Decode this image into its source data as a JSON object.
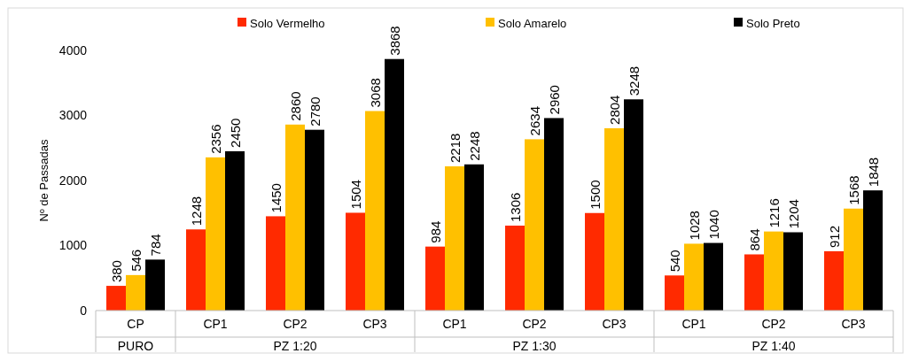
{
  "chart_data": {
    "type": "bar",
    "ylabel": "Nº de Passadas",
    "categories": [
      "CP",
      "CP1",
      "CP2",
      "CP3",
      "CP1",
      "CP2",
      "CP3",
      "CP1",
      "CP2",
      "CP3"
    ],
    "series": [
      {
        "name": "Solo Vermelho",
        "color": "#ff2a00",
        "values": [
          380,
          1248,
          1450,
          1504,
          984,
          1306,
          1500,
          540,
          864,
          912
        ]
      },
      {
        "name": "Solo Amarelo",
        "color": "#ffc000",
        "values": [
          546,
          2356,
          2860,
          3068,
          2218,
          2634,
          2804,
          1028,
          1216,
          1568
        ]
      },
      {
        "name": "Solo Preto",
        "color": "#000000",
        "values": [
          784,
          2450,
          2780,
          3868,
          2248,
          2960,
          3248,
          1040,
          1204,
          1848
        ]
      }
    ],
    "annotations": [
      "PURO",
      "PZ 1:20",
      "PZ 1:30",
      "PZ 1:40"
    ],
    "ylim": [
      0,
      4000
    ],
    "yticks": [
      0,
      1000,
      2000,
      3000,
      4000
    ],
    "data_labels": true,
    "legend": "top",
    "grid": false
  }
}
